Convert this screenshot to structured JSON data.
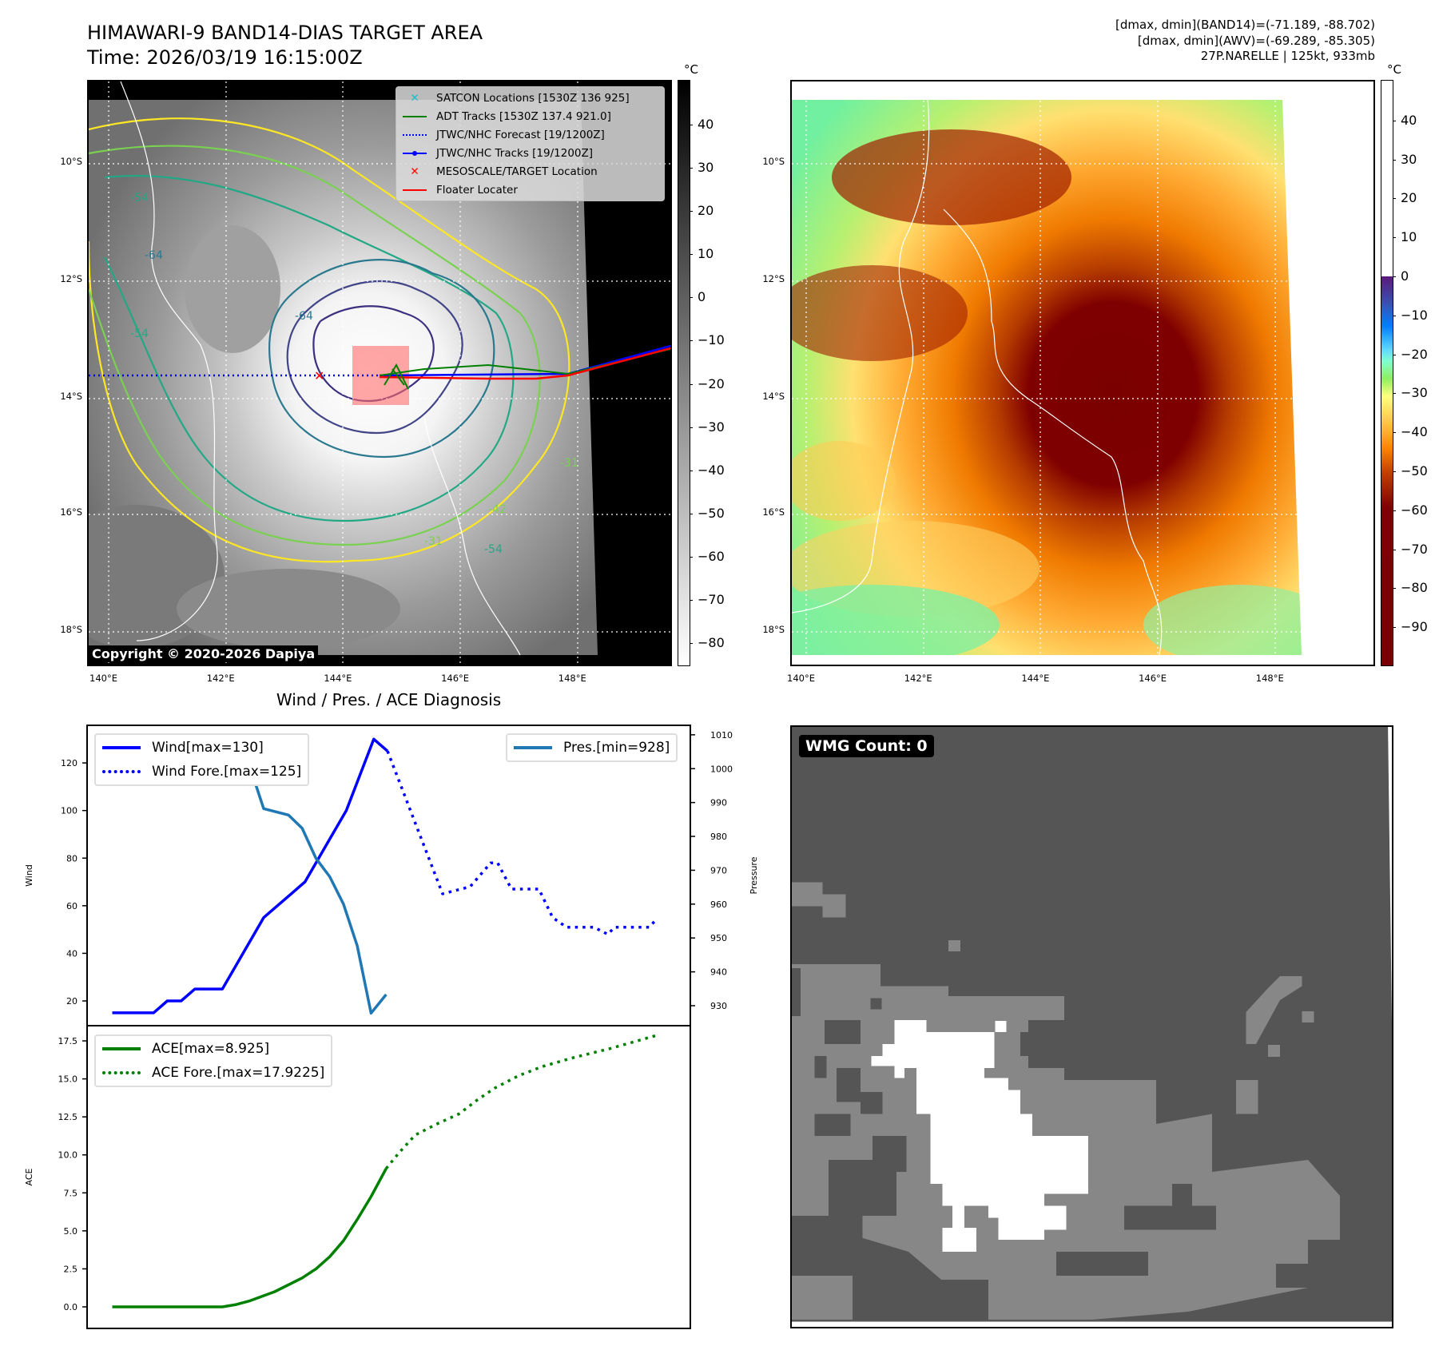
{
  "header": {
    "title_line1": "HIMAWARI-9 BAND14-DIAS TARGET AREA",
    "title_line2": "Time: 2026/03/19 16:15:00Z",
    "stats": [
      "[dmax, dmin](BAND14)=(-71.189, -88.702)",
      "[dmax, dmin](AWV)=(-69.289, -85.305)",
      "27P.NARELLE | 125kt, 933mb"
    ]
  },
  "maps": {
    "lon_ticks": [
      "140°E",
      "142°E",
      "144°E",
      "146°E",
      "148°E"
    ],
    "lat_ticks": [
      "10°S",
      "12°S",
      "14°S",
      "16°S",
      "18°S"
    ],
    "copyright": "Copyright © 2020-2026 Dapiya",
    "contour_labels": [
      "-54",
      "-64",
      "-54",
      "-64",
      "-31",
      "-42",
      "-31",
      "-54"
    ],
    "legend": [
      {
        "label": "SATCON Locations [1530Z 136 925]",
        "color": "#17becf",
        "symbol": "x"
      },
      {
        "label": "ADT Tracks [1530Z 137.4 921.0]",
        "color": "#008000",
        "symbol": "line"
      },
      {
        "label": "JTWC/NHC Forecast [19/1200Z]",
        "color": "#0000ff",
        "symbol": "dotted"
      },
      {
        "label": "JTWC/NHC Tracks [19/1200Z]",
        "color": "#0000ff",
        "symbol": "line-dot"
      },
      {
        "label": "MESOSCALE/TARGET Location",
        "color": "#ff0000",
        "symbol": "x"
      },
      {
        "label": "Floater Locater",
        "color": "#ff0000",
        "symbol": "line"
      }
    ],
    "left_colorbar": {
      "unit": "°C",
      "ticks": [
        "40",
        "30",
        "20",
        "10",
        "0",
        "−10",
        "−20",
        "−30",
        "−40",
        "−50",
        "−60",
        "−70",
        "−80"
      ],
      "values": [
        40,
        30,
        20,
        10,
        0,
        -10,
        -20,
        -30,
        -40,
        -50,
        -60,
        -70,
        -80
      ],
      "range": [
        -85.3,
        50.3
      ]
    },
    "right_colorbar": {
      "unit": "°C",
      "ticks": [
        "40",
        "30",
        "20",
        "10",
        "0",
        "−10",
        "−20",
        "−30",
        "−40",
        "−50",
        "−60",
        "−70",
        "−80",
        "−90"
      ],
      "values": [
        40,
        30,
        20,
        10,
        0,
        -10,
        -20,
        -30,
        -40,
        -50,
        -60,
        -70,
        -80,
        -90
      ],
      "range": [
        -100,
        50.4
      ]
    }
  },
  "wmg": {
    "label": "WMG Count: 0"
  },
  "chart_data": [
    {
      "type": "line",
      "title": "Wind / Pres. / ACE Diagnosis",
      "ylabel": "Wind",
      "y2label": "Pressure",
      "xlim": [
        -1.83,
        42
      ],
      "ylim": [
        9.6,
        135.8
      ],
      "y2lim": [
        924.1,
        1012.8
      ],
      "yticks": [
        20,
        40,
        60,
        80,
        100,
        120
      ],
      "y2ticks": [
        930,
        940,
        950,
        960,
        970,
        980,
        990,
        1000,
        1010
      ],
      "series": [
        {
          "name": "Wind[max=130]",
          "axis": "left",
          "style": "solid",
          "color": "#0000ff",
          "points": [
            [
              0,
              15
            ],
            [
              1,
              15
            ],
            [
              2,
              15
            ],
            [
              3,
              15
            ],
            [
              4,
              20
            ],
            [
              5,
              20
            ],
            [
              6,
              25
            ],
            [
              7,
              25
            ],
            [
              8,
              25
            ],
            [
              9,
              35
            ],
            [
              10,
              45
            ],
            [
              11,
              55
            ],
            [
              12,
              60
            ],
            [
              13,
              65
            ],
            [
              14,
              70
            ],
            [
              15,
              80
            ],
            [
              16,
              90
            ],
            [
              17,
              100
            ],
            [
              18,
              115
            ],
            [
              19,
              130
            ],
            [
              20,
              125
            ]
          ]
        },
        {
          "name": "Wind Fore.[max=125]",
          "axis": "left",
          "style": "dotted",
          "color": "#0000ff",
          "points": [
            [
              20,
              125
            ],
            [
              24,
              65
            ],
            [
              26,
              68
            ],
            [
              27.5,
              78
            ],
            [
              28,
              78
            ],
            [
              29,
              67
            ],
            [
              31,
              67
            ],
            [
              32,
              55
            ],
            [
              33,
              51
            ],
            [
              35,
              51
            ],
            [
              36,
              48
            ],
            [
              36.5,
              51
            ],
            [
              39,
              51
            ],
            [
              39.5,
              54
            ]
          ]
        },
        {
          "name": "Pres.[min=928]",
          "axis": "right",
          "style": "solid",
          "color": "#1f77b4",
          "points": [
            [
              0,
              1009.4
            ],
            [
              2,
              1009.4
            ],
            [
              3,
              1005.1
            ],
            [
              4,
              1006.4
            ],
            [
              5,
              1005.1
            ],
            [
              6,
              1003.2
            ],
            [
              9,
              1003.2
            ],
            [
              10,
              1000.5
            ],
            [
              11,
              988.2
            ],
            [
              12.8,
              986.3
            ],
            [
              13.8,
              982.4
            ],
            [
              14.8,
              973.5
            ],
            [
              15.8,
              968.1
            ],
            [
              16.8,
              960
            ],
            [
              17.8,
              947.7
            ],
            [
              18.8,
              927.8
            ],
            [
              19.9,
              933.3
            ]
          ]
        }
      ]
    },
    {
      "type": "line",
      "ylabel": "ACE",
      "xlim": [
        -1.83,
        42
      ],
      "ylim": [
        -1.42,
        18.5
      ],
      "yticks": [
        "0.0",
        "2.5",
        "5.0",
        "7.5",
        "10.0",
        "12.5",
        "15.0",
        "17.5"
      ],
      "series": [
        {
          "name": "ACE[max=8.925]",
          "style": "solid",
          "color": "#008000",
          "points": [
            [
              0,
              0
            ],
            [
              8,
              0
            ],
            [
              9,
              0.15
            ],
            [
              10,
              0.4
            ],
            [
              11.8,
              1.0
            ],
            [
              13.8,
              1.9
            ],
            [
              14.8,
              2.5
            ],
            [
              15.8,
              3.3
            ],
            [
              16.8,
              4.35
            ],
            [
              17.8,
              5.75
            ],
            [
              18.8,
              7.25
            ],
            [
              19.9,
              9.1
            ]
          ]
        },
        {
          "name": "ACE Fore.[max=17.9225]",
          "style": "dotted",
          "color": "#008000",
          "points": [
            [
              19.9,
              9.1
            ],
            [
              20.8,
              10.1
            ],
            [
              22,
              11.3
            ],
            [
              23.5,
              12
            ],
            [
              25.2,
              12.7
            ],
            [
              26.5,
              13.6
            ],
            [
              27.8,
              14.4
            ],
            [
              29.5,
              15.2
            ],
            [
              31.2,
              15.8
            ],
            [
              33.5,
              16.4
            ],
            [
              36.2,
              17.0
            ],
            [
              39.7,
              17.9
            ]
          ]
        }
      ]
    }
  ]
}
